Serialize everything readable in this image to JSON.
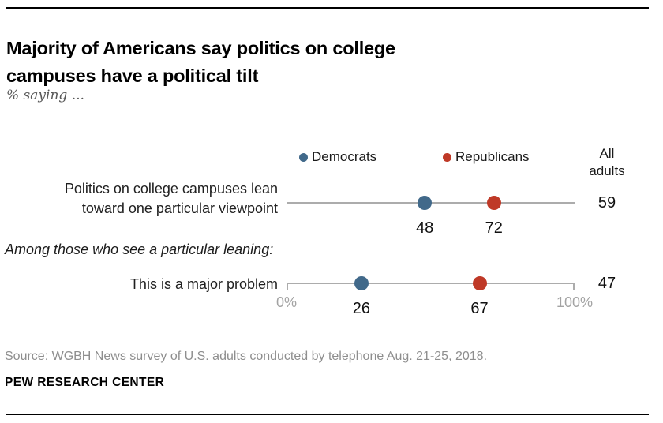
{
  "header": {
    "title": "Majority of Americans say politics on college campuses have a political tilt",
    "title_lines": [
      "Majority of Americans say politics on college",
      "campuses have a political tilt"
    ],
    "subtitle": "% saying ..."
  },
  "legend": {
    "democrats_label": "Democrats",
    "republicans_label": "Republicans",
    "all_adults_label": "All adults"
  },
  "chart_data": {
    "type": "scatter",
    "variant": "horizontal-dot-plot",
    "title": "Majority of Americans say politics on college campuses have a political tilt",
    "subtitle": "% saying ...",
    "series_names": [
      "Democrats",
      "Republicans",
      "All adults"
    ],
    "axis": {
      "min": 0,
      "max": 100,
      "min_label": "0%",
      "max_label": "100%",
      "grid": false,
      "axis_shown_under_row": 2
    },
    "legend_position": "top",
    "rows": [
      {
        "label": "Politics on college campuses lean toward one particular viewpoint",
        "label_lines": [
          "Politics on college campuses lean",
          "toward one particular viewpoint"
        ],
        "values": {
          "democrats": 48,
          "republicans": 72,
          "all_adults": 59
        }
      },
      {
        "label": "This is a major problem",
        "label_lines": [
          "This is a major problem"
        ],
        "values": {
          "democrats": 26,
          "republicans": 67,
          "all_adults": 47
        }
      }
    ],
    "section_note": "Among those who see a particular leaning:",
    "section_note_before_row": 2
  },
  "footer": {
    "source": "Source: WGBH News survey of U.S. adults conducted by telephone Aug. 21-25, 2018.",
    "brand": "PEW RESEARCH CENTER"
  },
  "colors": {
    "democrat": "#41698A",
    "republican": "#BF3927",
    "track": "#ACACAC",
    "axis_label": "#A3A3A3",
    "source_text": "#8E8E8E"
  }
}
